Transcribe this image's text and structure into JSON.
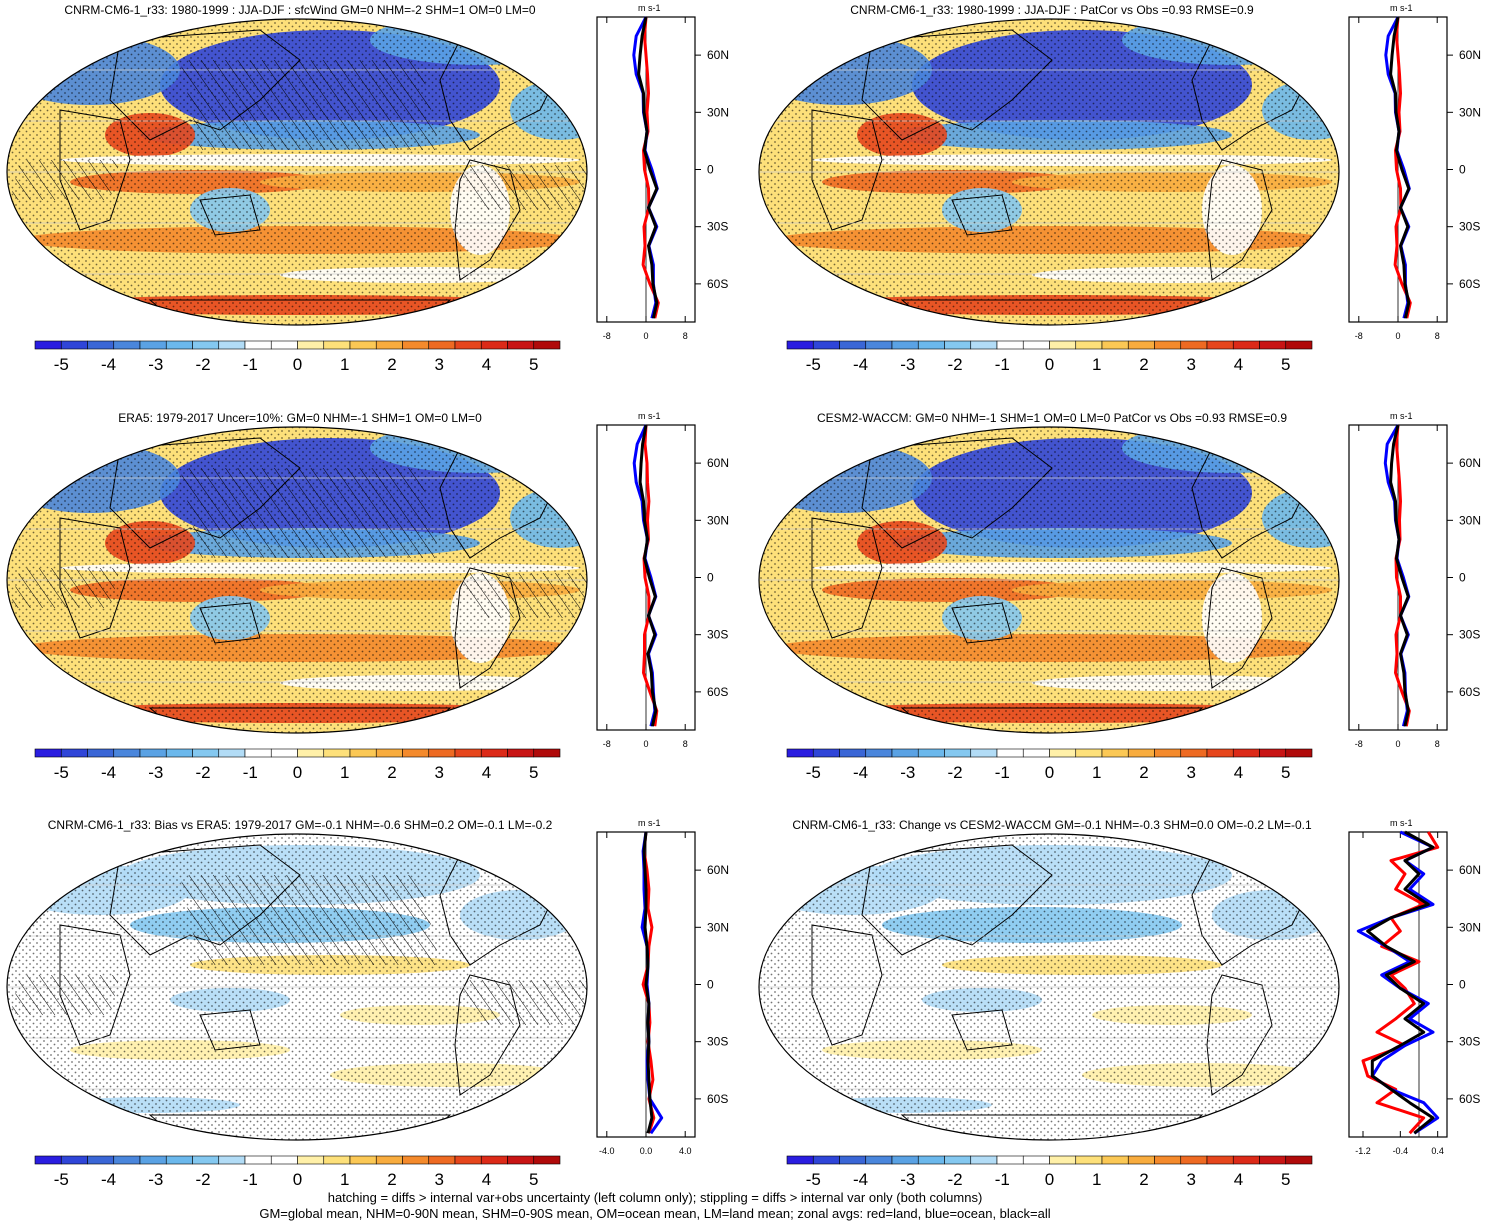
{
  "figure": {
    "colors": {
      "palette": [
        "#2a1de0",
        "#2f45d8",
        "#3a66d6",
        "#4a86dc",
        "#5aa2e4",
        "#6bb8ec",
        "#84c8f0",
        "#b2dcf6",
        "#ffffff",
        "#ffffff",
        "#fff0a8",
        "#fde07a",
        "#fbc855",
        "#f8ac3e",
        "#f48a2c",
        "#ee6a22",
        "#e6461c",
        "#dc2a18",
        "#c81414",
        "#b00a0a"
      ],
      "land": "#000000",
      "lines": {
        "land": "#ff0000",
        "ocean": "#0000ff",
        "all": "#000000"
      }
    },
    "colorbar_labels": [
      "-5",
      "-4",
      "-3",
      "-2",
      "-1",
      "0",
      "1",
      "2",
      "3",
      "4",
      "5"
    ],
    "footnote_lines": [
      "hatching = diffs > internal var+obs uncertainty (left column only); stippling = diffs > internal var only (both columns)",
      "GM=global mean, NHM=0-90N mean, SHM=0-90S mean, OM=ocean mean, LM=land mean; zonal avgs: red=land, blue=ocean, black=all"
    ]
  },
  "chart_data": [
    {
      "type": "heatmap",
      "title": "CNRM-CM6-1_r33: 1980-1999 : JJA-DJF : sfcWind GM=0 NHM=-2 SHM=1 OM=0 LM=0",
      "colorbar": {
        "min": -5,
        "max": 5,
        "ticks": [
          -5,
          -4,
          -3,
          -2,
          -1,
          0,
          1,
          2,
          3,
          4,
          5
        ]
      },
      "zonal_profile": {
        "unit_label": "m s-1",
        "x_ticks": [
          "-8",
          "0",
          "8"
        ],
        "xlim": [
          -10,
          10
        ],
        "y_ticks": [
          "60N",
          "30N",
          "0",
          "30S",
          "60S"
        ],
        "series": [
          {
            "name": "land",
            "lat": [
              80,
              70,
              60,
              50,
              40,
              30,
              20,
              10,
              0,
              -10,
              -20,
              -30,
              -40,
              -50,
              -60,
              -70,
              -78
            ],
            "values": [
              0,
              -0.3,
              0,
              0.3,
              0.5,
              0.2,
              0.4,
              -0.5,
              -0.3,
              0.5,
              0.6,
              -0.4,
              -0.2,
              -0.6,
              0.8,
              2.5,
              1.8
            ]
          },
          {
            "name": "ocean",
            "lat": [
              80,
              70,
              60,
              50,
              40,
              30,
              20,
              10,
              0,
              -10,
              -20,
              -30,
              -40,
              -50,
              -60,
              -70,
              -78
            ],
            "values": [
              0,
              -2,
              -2.5,
              -2,
              -0.6,
              -0.5,
              0.2,
              -0.2,
              1.2,
              2.3,
              0.5,
              2.2,
              0.6,
              1.5,
              1.5,
              2,
              1.2
            ]
          },
          {
            "name": "all",
            "lat": [
              80,
              70,
              60,
              50,
              40,
              30,
              20,
              10,
              0,
              -10,
              -20,
              -30,
              -40,
              -50,
              -60,
              -70,
              -78
            ],
            "values": [
              0,
              -0.8,
              -1.2,
              -1.5,
              -0.5,
              -0.4,
              0.2,
              -0.3,
              0.8,
              2.2,
              0.5,
              2,
              0.5,
              1.2,
              1.4,
              2.2,
              1.5
            ]
          }
        ]
      }
    },
    {
      "type": "heatmap",
      "title": "CNRM-CM6-1_r33: 1980-1999 : JJA-DJF : PatCor vs Obs =0.93 RMSE=0.9",
      "colorbar": {
        "min": -5,
        "max": 5,
        "ticks": [
          -5,
          -4,
          -3,
          -2,
          -1,
          0,
          1,
          2,
          3,
          4,
          5
        ]
      },
      "zonal_profile": {
        "unit_label": "m s-1",
        "x_ticks": [
          "-8",
          "0",
          "8"
        ],
        "xlim": [
          -10,
          10
        ],
        "y_ticks": [
          "60N",
          "30N",
          "0",
          "30S",
          "60S"
        ],
        "series": [
          {
            "name": "land",
            "lat": [
              80,
              70,
              60,
              50,
              40,
              30,
              20,
              10,
              0,
              -10,
              -20,
              -30,
              -40,
              -50,
              -60,
              -70,
              -78
            ],
            "values": [
              0,
              -0.3,
              0,
              0.3,
              0.5,
              0.2,
              0.4,
              -0.5,
              -0.3,
              0.5,
              0.6,
              -0.4,
              -0.2,
              -0.6,
              0.8,
              2.5,
              1.8
            ]
          },
          {
            "name": "ocean",
            "lat": [
              80,
              70,
              60,
              50,
              40,
              30,
              20,
              10,
              0,
              -10,
              -20,
              -30,
              -40,
              -50,
              -60,
              -70,
              -78
            ],
            "values": [
              0,
              -2,
              -2.5,
              -2,
              -0.6,
              -0.5,
              0.2,
              -0.2,
              1.2,
              2.3,
              0.5,
              2.2,
              0.6,
              1.5,
              1.5,
              2,
              1.2
            ]
          },
          {
            "name": "all",
            "lat": [
              80,
              70,
              60,
              50,
              40,
              30,
              20,
              10,
              0,
              -10,
              -20,
              -30,
              -40,
              -50,
              -60,
              -70,
              -78
            ],
            "values": [
              0,
              -0.8,
              -1.2,
              -1.5,
              -0.5,
              -0.4,
              0.2,
              -0.3,
              0.8,
              2.2,
              0.5,
              2,
              0.5,
              1.2,
              1.4,
              2.2,
              1.5
            ]
          }
        ]
      }
    },
    {
      "type": "heatmap",
      "title": "ERA5: 1979-2017 Uncer=10%: GM=0 NHM=-1 SHM=1 OM=0 LM=0",
      "colorbar": {
        "min": -5,
        "max": 5,
        "ticks": [
          -5,
          -4,
          -3,
          -2,
          -1,
          0,
          1,
          2,
          3,
          4,
          5
        ]
      },
      "zonal_profile": {
        "unit_label": "m s-1",
        "x_ticks": [
          "-8",
          "0",
          "8"
        ],
        "xlim": [
          -10,
          10
        ],
        "y_ticks": [
          "60N",
          "30N",
          "0",
          "30S",
          "60S"
        ],
        "series": [
          {
            "name": "land",
            "lat": [
              80,
              70,
              60,
              50,
              40,
              30,
              20,
              10,
              0,
              -10,
              -20,
              -30,
              -40,
              -50,
              -60,
              -70,
              -78
            ],
            "values": [
              0,
              -0.2,
              0.2,
              0.3,
              0.6,
              0.3,
              0.5,
              -0.4,
              -0.2,
              0.6,
              0.6,
              -0.3,
              -0.3,
              -0.5,
              0.8,
              2.2,
              1.8
            ]
          },
          {
            "name": "ocean",
            "lat": [
              80,
              70,
              60,
              50,
              40,
              30,
              20,
              10,
              0,
              -10,
              -20,
              -30,
              -40,
              -50,
              -60,
              -70,
              -78
            ],
            "values": [
              0,
              -1.8,
              -2.4,
              -2,
              -0.8,
              -0.5,
              0.3,
              -0.2,
              1,
              2,
              0.5,
              2,
              0.5,
              1.3,
              1.5,
              1.8,
              1
            ]
          },
          {
            "name": "all",
            "lat": [
              80,
              70,
              60,
              50,
              40,
              30,
              20,
              10,
              0,
              -10,
              -20,
              -30,
              -40,
              -50,
              -60,
              -70,
              -78
            ],
            "values": [
              0,
              -0.7,
              -1,
              -1.2,
              -0.5,
              -0.3,
              0.3,
              -0.3,
              0.7,
              1.9,
              0.5,
              1.8,
              0.4,
              1.1,
              1.3,
              2,
              1.3
            ]
          }
        ]
      }
    },
    {
      "type": "heatmap",
      "title": "CESM2-WACCM: GM=0 NHM=-1 SHM=1 OM=0 LM=0 PatCor vs Obs =0.93 RMSE=0.9",
      "colorbar": {
        "min": -5,
        "max": 5,
        "ticks": [
          -5,
          -4,
          -3,
          -2,
          -1,
          0,
          1,
          2,
          3,
          4,
          5
        ]
      },
      "zonal_profile": {
        "unit_label": "m s-1",
        "x_ticks": [
          "-8",
          "0",
          "8"
        ],
        "xlim": [
          -10,
          10
        ],
        "y_ticks": [
          "60N",
          "30N",
          "0",
          "30S",
          "60S"
        ],
        "series": [
          {
            "name": "land",
            "lat": [
              80,
              70,
              60,
              50,
              40,
              30,
              20,
              10,
              0,
              -10,
              -20,
              -30,
              -40,
              -50,
              -60,
              -70,
              -78
            ],
            "values": [
              0,
              -0.3,
              0,
              0.3,
              0.5,
              0.3,
              0.4,
              -0.4,
              -0.3,
              0.5,
              0.5,
              -0.4,
              -0.2,
              -0.5,
              0.8,
              2.3,
              1.7
            ]
          },
          {
            "name": "ocean",
            "lat": [
              80,
              70,
              60,
              50,
              40,
              30,
              20,
              10,
              0,
              -10,
              -20,
              -30,
              -40,
              -50,
              -60,
              -70,
              -78
            ],
            "values": [
              0,
              -2.2,
              -2.6,
              -2,
              -0.7,
              -0.5,
              0.2,
              -0.2,
              1.1,
              2.2,
              0.5,
              2.1,
              0.6,
              1.4,
              1.5,
              1.9,
              1.1
            ]
          },
          {
            "name": "all",
            "lat": [
              80,
              70,
              60,
              50,
              40,
              30,
              20,
              10,
              0,
              -10,
              -20,
              -30,
              -40,
              -50,
              -60,
              -70,
              -78
            ],
            "values": [
              0,
              -0.9,
              -1.3,
              -1.5,
              -0.5,
              -0.4,
              0.2,
              -0.3,
              0.8,
              2.1,
              0.5,
              1.9,
              0.5,
              1.2,
              1.4,
              2.1,
              1.4
            ]
          }
        ]
      }
    },
    {
      "type": "heatmap",
      "title": "CNRM-CM6-1_r33: Bias vs ERA5: 1979-2017 GM=-0.1 NHM=-0.6 SHM=0.2 OM=-0.1 LM=-0.2",
      "colorbar": {
        "min": -5,
        "max": 5,
        "ticks": [
          -5,
          -4,
          -3,
          -2,
          -1,
          0,
          1,
          2,
          3,
          4,
          5
        ]
      },
      "zonal_profile": {
        "unit_label": "m s-1",
        "x_ticks": [
          "-4.0",
          "0.0",
          "4.0"
        ],
        "xlim": [
          -5,
          5
        ],
        "y_ticks": [
          "60N",
          "30N",
          "0",
          "30S",
          "60S"
        ],
        "series": [
          {
            "name": "land",
            "lat": [
              80,
              70,
              60,
              50,
              40,
              30,
              20,
              10,
              0,
              -10,
              -20,
              -30,
              -40,
              -50,
              -60,
              -70,
              -78
            ],
            "values": [
              0,
              -0.2,
              0.1,
              0.3,
              0.2,
              0.6,
              0.3,
              0.2,
              -0.3,
              0.3,
              0.4,
              0.2,
              0.5,
              0.7,
              0.3,
              0.8,
              0.3
            ]
          },
          {
            "name": "ocean",
            "lat": [
              80,
              70,
              60,
              50,
              40,
              30,
              20,
              10,
              0,
              -10,
              -20,
              -30,
              -40,
              -50,
              -60,
              -70,
              -78
            ],
            "values": [
              0,
              -0.3,
              -0.2,
              -0.2,
              -0.1,
              -0.4,
              0.1,
              0.2,
              0.1,
              0.3,
              0.2,
              0.3,
              0.1,
              0.2,
              0.4,
              1.6,
              0.5
            ]
          },
          {
            "name": "all",
            "lat": [
              80,
              70,
              60,
              50,
              40,
              30,
              20,
              10,
              0,
              -10,
              -20,
              -30,
              -40,
              -50,
              -60,
              -70,
              -78
            ],
            "values": [
              0,
              -0.2,
              -0.1,
              0,
              0,
              -0.1,
              0.1,
              0.2,
              0,
              0.3,
              0.2,
              0.3,
              0.2,
              0.3,
              0.4,
              0.6,
              0.2
            ]
          }
        ]
      }
    },
    {
      "type": "heatmap",
      "title": "CNRM-CM6-1_r33: Change vs CESM2-WACCM GM=-0.1 NHM=-0.3 SHM=0.0 OM=-0.2 LM=-0.1",
      "colorbar": {
        "min": -5,
        "max": 5,
        "ticks": [
          -5,
          -4,
          -3,
          -2,
          -1,
          0,
          1,
          2,
          3,
          4,
          5
        ]
      },
      "zonal_profile": {
        "unit_label": "m s-1",
        "x_ticks": [
          "-1.2",
          "-0.4",
          "0.4"
        ],
        "xlim": [
          -1.5,
          0.6
        ],
        "y_ticks": [
          "60N",
          "30N",
          "0",
          "30S",
          "60S"
        ],
        "series": [
          {
            "name": "land",
            "lat": [
              80,
              72,
              65,
              58,
              50,
              42,
              35,
              28,
              20,
              12,
              5,
              -2,
              -10,
              -18,
              -25,
              -32,
              -40,
              -48,
              -55,
              -62,
              -70,
              -78
            ],
            "values": [
              0.2,
              0.4,
              -0.6,
              -0.3,
              -0.5,
              0.1,
              -0.6,
              -0.4,
              -0.8,
              0,
              -0.6,
              -0.3,
              -0.1,
              -0.5,
              -0.9,
              -0.3,
              -1.2,
              -1.1,
              -0.5,
              -0.9,
              0.1,
              -0.2
            ]
          },
          {
            "name": "ocean",
            "lat": [
              80,
              72,
              65,
              58,
              50,
              42,
              35,
              28,
              20,
              12,
              5,
              -2,
              -10,
              -18,
              -25,
              -32,
              -40,
              -48,
              -55,
              -62,
              -70,
              -78
            ],
            "values": [
              -0.4,
              0.3,
              -0.3,
              0.1,
              -0.2,
              0.3,
              -0.6,
              -1.3,
              -0.7,
              -0.2,
              -0.8,
              -0.4,
              0.2,
              -0.2,
              0.3,
              -0.3,
              -0.8,
              -1.0,
              -0.6,
              0.1,
              0.4,
              -0.1
            ]
          },
          {
            "name": "all",
            "lat": [
              80,
              72,
              65,
              58,
              50,
              42,
              35,
              28,
              20,
              12,
              5,
              -2,
              -10,
              -18,
              -25,
              -32,
              -40,
              -48,
              -55,
              -62,
              -70,
              -78
            ],
            "values": [
              -0.3,
              0.3,
              -0.3,
              0,
              -0.3,
              0.2,
              -0.6,
              -1.1,
              -0.7,
              -0.1,
              -0.7,
              -0.4,
              0.1,
              -0.3,
              0.1,
              -0.4,
              -1.0,
              -1.0,
              -0.6,
              -0.2,
              0.3,
              -0.1
            ]
          }
        ]
      }
    }
  ]
}
